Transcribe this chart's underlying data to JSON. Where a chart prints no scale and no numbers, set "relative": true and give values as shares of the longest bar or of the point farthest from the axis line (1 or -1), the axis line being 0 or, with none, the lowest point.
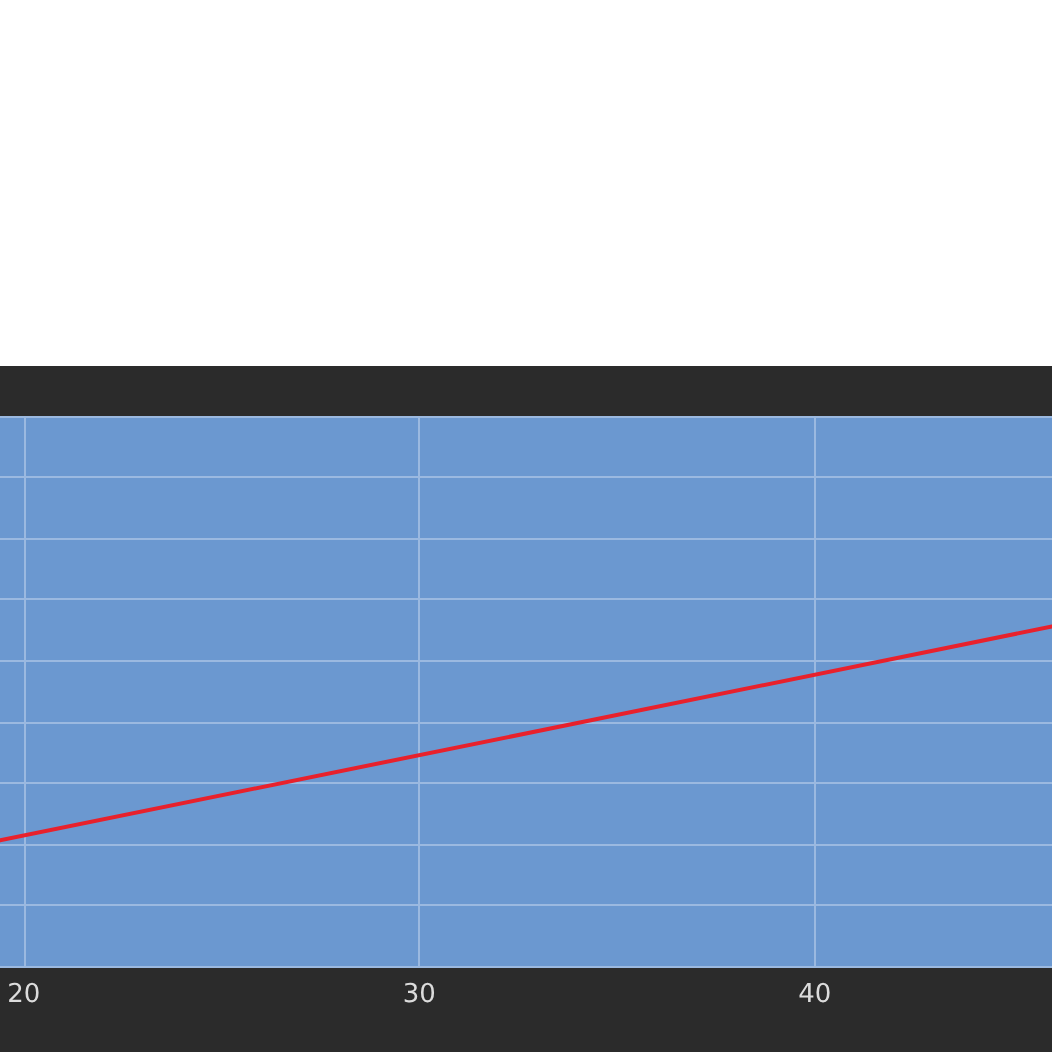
{
  "chart_data": {
    "type": "line",
    "relative": true,
    "x": [
      19.4,
      46
    ],
    "values": [
      0.37,
      1
    ],
    "color": "#e8212c",
    "xlim": [
      19.4,
      46
    ],
    "xticks": [
      20,
      30,
      40
    ],
    "grid": true,
    "tick_labels": "x"
  }
}
